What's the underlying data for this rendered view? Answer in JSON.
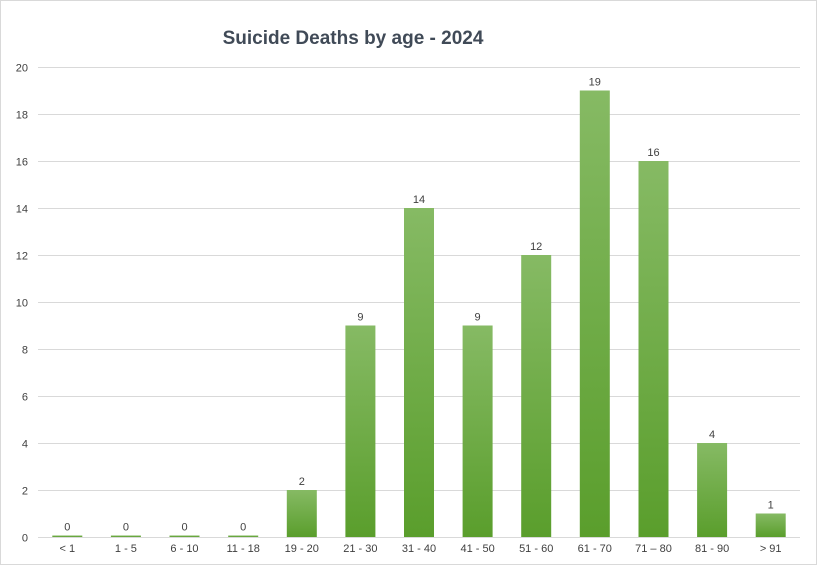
{
  "chart_data": {
    "type": "bar",
    "title": "Suicide Deaths by age - 2024",
    "xlabel": "",
    "ylabel": "",
    "categories": [
      "< 1",
      "1 - 5",
      "6 - 10",
      "11 - 18",
      "19 - 20",
      "21 - 30",
      "31 - 40",
      "41 - 50",
      "51 - 60",
      "61 - 70",
      "71 – 80",
      "81 - 90",
      "> 91"
    ],
    "values": [
      0,
      0,
      0,
      0,
      2,
      9,
      14,
      9,
      12,
      19,
      16,
      4,
      1
    ],
    "ylim": [
      0,
      20
    ],
    "yticks": [
      0,
      2,
      4,
      6,
      8,
      10,
      12,
      14,
      16,
      18,
      20
    ],
    "grid": true,
    "legend": "none",
    "colors": {
      "bar_top": "#86ba64",
      "bar_bottom": "#5a9e2c",
      "grid": "#d9d9d9",
      "text": "#404040"
    }
  }
}
